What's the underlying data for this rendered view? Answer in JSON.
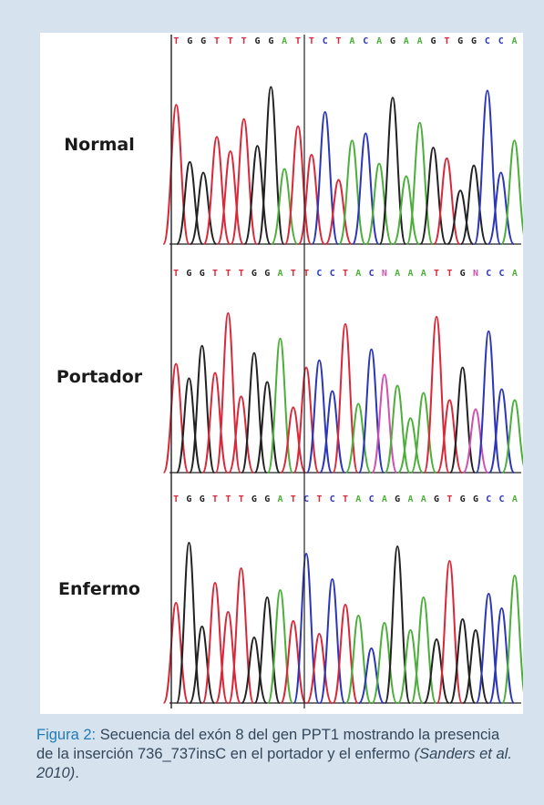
{
  "figure": {
    "rows": [
      {
        "label": "Normal",
        "sequence": "TGGTTTGGATTCTACAGAAGTGGCCA"
      },
      {
        "label": "Portador",
        "sequence": "TGGTTTGGATTCCTACNAAATTGNCCA"
      },
      {
        "label": "Enfermo",
        "sequence": "TGGTTTGGATCTCTACAGAAGTGGCCA"
      }
    ],
    "base_colors": {
      "A": "#4caf3a",
      "C": "#2c36b8",
      "G": "#222222",
      "T": "#d8283a",
      "N": "#d04fb3"
    }
  },
  "caption": {
    "label": "Figura 2:",
    "text": " Secuencia del exón 8 del gen PPT1 mostrando la presencia de la inserción 736_737insC en el portador y el enfermo ",
    "citation": "(Sanders et al. 2010)",
    "end": "."
  }
}
